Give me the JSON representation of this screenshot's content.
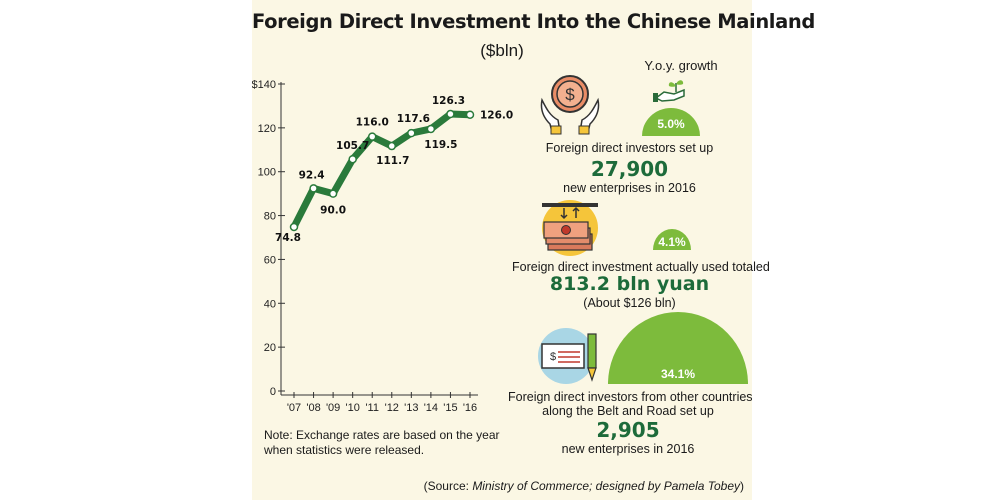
{
  "title": "Foreign Direct Investment Into the Chinese Mainland",
  "subtitle": "($bln)",
  "colors": {
    "line": "#2a7a3b",
    "green_badge": "#7dbb3c",
    "headline_number": "#1d6b3a",
    "background": "#fbf7e4"
  },
  "chart_data": {
    "type": "line",
    "x": [
      "'07",
      "'08",
      "'09",
      "'10",
      "'11",
      "'12",
      "'13",
      "'14",
      "'15",
      "'16"
    ],
    "series": [
      {
        "values": [
          74.8,
          92.4,
          90.0,
          105.7,
          116.0,
          111.7,
          117.6,
          119.5,
          126.3,
          126.0
        ]
      }
    ],
    "data_labels": [
      "74.8",
      "92.4",
      "90.0",
      "105.7",
      "116.0",
      "111.7",
      "117.6",
      "119.5",
      "126.3",
      "126.0"
    ],
    "ylim": [
      0,
      140
    ],
    "yticks": [
      "0",
      "20",
      "40",
      "60",
      "80",
      "100",
      "120",
      "$140"
    ],
    "grid": false
  },
  "note": "Note: Exchange rates are based on the year when statistics were released.",
  "source_prefix": "(Source: ",
  "source_italic": "Ministry of Commerce; designed by Pamela Tobey",
  "source_suffix": ")",
  "yoy_title": "Y.o.y. growth",
  "stats": [
    {
      "growth": "5.0%",
      "line1": "Foreign direct investors set up",
      "big": "27,900",
      "line2": "new enterprises in 2016",
      "icon": "hands-holding-dollar-coin-icon"
    },
    {
      "growth": "4.1%",
      "line1": "Foreign direct investment actually used totaled",
      "big": "813.2 bln yuan",
      "line2": "(About $126 bln)",
      "icon": "money-stack-icon"
    },
    {
      "growth": "34.1%",
      "line1": "Foreign direct investors from other countries",
      "line1b": "along the Belt and Road set up",
      "big": "2,905",
      "line2": "new enterprises in 2016",
      "icon": "cheque-and-pen-icon"
    }
  ],
  "growth_icon": "hand-with-sprout-icon"
}
